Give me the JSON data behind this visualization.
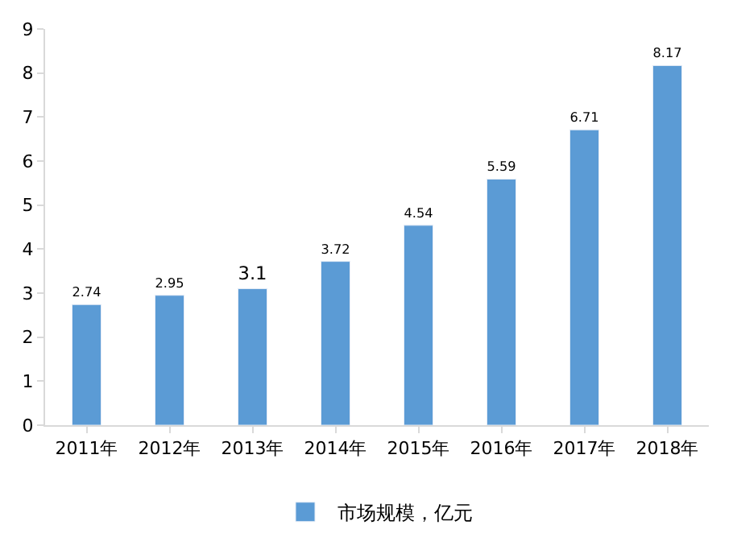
{
  "chart_data": {
    "type": "bar",
    "categories": [
      "2011年",
      "2012年",
      "2013年",
      "2014年",
      "2015年",
      "2016年",
      "2017年",
      "2018年"
    ],
    "series": [
      {
        "name": "市场规模，亿元",
        "color": "#5b9bd5",
        "values": [
          2.74,
          2.95,
          3.1,
          3.72,
          4.54,
          5.59,
          6.71,
          8.17
        ]
      }
    ],
    "ylim": [
      0,
      9
    ],
    "yticks": [
      0,
      1,
      2,
      3,
      4,
      5,
      6,
      7,
      8,
      9
    ],
    "data_labels": true,
    "grid": false,
    "legend": "bottom"
  }
}
